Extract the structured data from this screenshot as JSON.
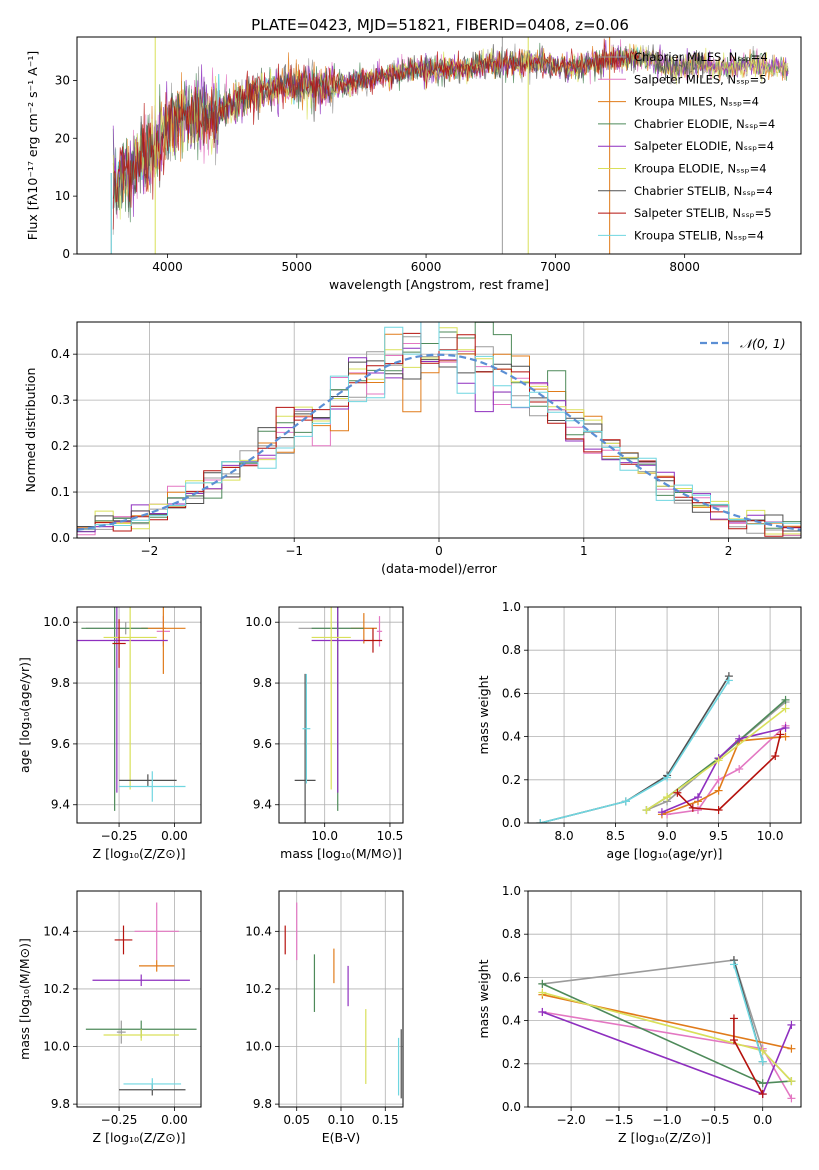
{
  "title": "PLATE=0423, MJD=51821, FIBERID=0408, z=0.06",
  "colors": [
    "#9b9b9b",
    "#e377c2",
    "#e07b1a",
    "#4e8a5a",
    "#8e2fbf",
    "#d9e05a",
    "#505050",
    "#b5120e",
    "#6fd6e0"
  ],
  "chart_data": [
    {
      "type": "line",
      "name": "spectrum",
      "xlabel": "wavelength [Angstrom, rest frame]",
      "ylabel": "Flux [fλ10⁻¹⁷ erg cm⁻² s⁻¹ A⁻¹]",
      "xlim": [
        3300,
        8900
      ],
      "ylim": [
        0,
        37.5
      ],
      "xticks": [
        4000,
        5000,
        6000,
        7000,
        8000
      ],
      "yticks": [
        0,
        10,
        20,
        30
      ],
      "grid": false,
      "legend_position": "right",
      "legend": [
        "Chabrier MILES, Nₛₛₚ=4",
        "Salpeter MILES, Nₛₛₚ=5",
        "Kroupa MILES, Nₛₛₚ=4",
        "Chabrier ELODIE, Nₛₛₚ=4",
        "Salpeter ELODIE, Nₛₛₚ=4",
        "Kroupa ELODIE, Nₛₛₚ=4",
        "Chabrier STELIB, Nₛₛₚ=4",
        "Salpeter STELIB, Nₛₛₚ=5",
        "Kroupa STELIB, Nₛₛₚ=4"
      ],
      "continuum": {
        "x": [
          3580,
          3700,
          3800,
          3900,
          4000,
          4100,
          4200,
          4300,
          4400,
          4500,
          4700,
          4900,
          5100,
          5300,
          5500,
          5700,
          5900,
          6100,
          6300,
          6500,
          6700,
          6900,
          7100,
          7300,
          7500,
          7700,
          7900,
          8100,
          8300,
          8500,
          8700,
          8800
        ],
        "y": [
          13,
          14,
          17,
          18,
          22,
          24,
          24,
          24,
          25,
          26,
          28,
          29,
          29,
          29,
          30,
          31,
          32,
          32,
          32,
          33,
          33,
          33,
          32,
          33,
          34,
          34,
          32,
          33,
          32,
          33,
          32,
          32
        ]
      }
    },
    {
      "type": "bar",
      "name": "residuals",
      "xlabel": "(data-model)/error",
      "ylabel": "Normed distribution",
      "xlim": [
        -2.5,
        2.5
      ],
      "ylim": [
        0,
        0.47
      ],
      "xticks": [
        -2,
        -1,
        0,
        1,
        2
      ],
      "yticks": [
        0.0,
        0.1,
        0.2,
        0.3,
        0.4
      ],
      "grid": true,
      "bins": 40,
      "legend_position": "top-right",
      "legend": [
        "𝒩(0, 1)"
      ]
    },
    {
      "type": "scatter",
      "name": "age-vs-Z",
      "xlabel": "Z [log₁₀(Z/Z⊙)]",
      "ylabel": "age  [log₁₀(age/yr)]",
      "xlim": [
        -0.44,
        0.12
      ],
      "ylim": [
        9.34,
        10.05
      ],
      "xticks": [
        -0.25,
        0.0
      ],
      "yticks": [
        9.4,
        9.6,
        9.8,
        10.0
      ],
      "grid": true,
      "points": [
        {
          "s": 0,
          "x": -0.22,
          "y": 9.98,
          "xe": 0.18,
          "ye": 0.02
        },
        {
          "s": 1,
          "x": -0.05,
          "y": 9.97,
          "xe": 0.03,
          "ye": 0.05
        },
        {
          "s": 2,
          "x": -0.05,
          "y": 9.98,
          "xe": 0.1,
          "ye": 0.15
        },
        {
          "s": 3,
          "x": -0.27,
          "y": 9.98,
          "xe": 0.15,
          "ye": 0.6
        },
        {
          "s": 4,
          "x": -0.26,
          "y": 9.94,
          "xe": 0.23,
          "ye": 0.5
        },
        {
          "s": 5,
          "x": -0.2,
          "y": 9.95,
          "xe": 0.12,
          "ye": 0.5
        },
        {
          "s": 6,
          "x": -0.12,
          "y": 9.48,
          "xe": 0.13,
          "ye": 0.02
        },
        {
          "s": 7,
          "x": -0.25,
          "y": 9.93,
          "xe": 0.03,
          "ye": 0.08
        },
        {
          "s": 8,
          "x": -0.1,
          "y": 9.46,
          "xe": 0.15,
          "ye": 0.05
        }
      ]
    },
    {
      "type": "scatter",
      "name": "age-vs-mass",
      "xlabel": "mass [log₁₀(M/M⊙)]",
      "ylabel": "",
      "xlim": [
        9.65,
        10.6
      ],
      "ylim": [
        9.34,
        10.05
      ],
      "xticks": [
        10.0,
        10.5
      ],
      "yticks": [
        9.4,
        9.6,
        9.8,
        10.0
      ],
      "grid": true,
      "points": [
        {
          "s": 0,
          "x": 10.1,
          "y": 9.98,
          "xe": 0.3,
          "ye": 0.02
        },
        {
          "s": 1,
          "x": 10.42,
          "y": 9.97,
          "xe": 0.02,
          "ye": 0.05
        },
        {
          "s": 2,
          "x": 10.3,
          "y": 9.98,
          "xe": 0.1,
          "ye": 0.05
        },
        {
          "s": 3,
          "x": 10.1,
          "y": 9.98,
          "xe": 0.2,
          "ye": 0.6
        },
        {
          "s": 4,
          "x": 10.1,
          "y": 9.94,
          "xe": 0.2,
          "ye": 0.5
        },
        {
          "s": 5,
          "x": 10.05,
          "y": 9.95,
          "xe": 0.15,
          "ye": 0.5
        },
        {
          "s": 6,
          "x": 9.85,
          "y": 9.48,
          "xe": 0.08,
          "ye": 0.35
        },
        {
          "s": 7,
          "x": 10.37,
          "y": 9.94,
          "xe": 0.07,
          "ye": 0.04
        },
        {
          "s": 8,
          "x": 9.86,
          "y": 9.65,
          "xe": 0.03,
          "ye": 0.18
        }
      ]
    },
    {
      "type": "line",
      "name": "mass-weight-vs-age",
      "xlabel": "age  [log₁₀(age/yr)]",
      "ylabel": "mass weight",
      "xlim": [
        7.65,
        10.3
      ],
      "ylim": [
        0,
        1
      ],
      "xticks": [
        8.0,
        8.5,
        9.0,
        9.5,
        10.0
      ],
      "yticks": [
        0.0,
        0.2,
        0.4,
        0.6,
        0.8,
        1.0
      ],
      "grid": true,
      "series": [
        {
          "s": 0,
          "x": [
            8.8,
            9.0,
            9.5,
            10.15
          ],
          "y": [
            0.06,
            0.1,
            0.3,
            0.56
          ]
        },
        {
          "s": 1,
          "x": [
            9.0,
            9.3,
            9.5,
            9.7,
            10.15
          ],
          "y": [
            0.04,
            0.06,
            0.2,
            0.25,
            0.45
          ]
        },
        {
          "s": 2,
          "x": [
            8.95,
            9.3,
            9.5,
            9.7,
            10.15
          ],
          "y": [
            0.04,
            0.1,
            0.15,
            0.38,
            0.4
          ]
        },
        {
          "s": 3,
          "x": [
            8.8,
            9.0,
            9.5,
            10.15
          ],
          "y": [
            0.06,
            0.12,
            0.3,
            0.57
          ]
        },
        {
          "s": 4,
          "x": [
            8.95,
            9.3,
            9.5,
            9.7,
            10.15
          ],
          "y": [
            0.05,
            0.12,
            0.3,
            0.39,
            0.44
          ]
        },
        {
          "s": 5,
          "x": [
            8.8,
            9.0,
            9.5,
            10.15
          ],
          "y": [
            0.06,
            0.12,
            0.29,
            0.53
          ]
        },
        {
          "s": 6,
          "x": [
            7.77,
            8.6,
            9.0,
            9.6
          ],
          "y": [
            0.0,
            0.1,
            0.22,
            0.68
          ]
        },
        {
          "s": 7,
          "x": [
            9.1,
            9.25,
            9.5,
            10.05,
            10.1
          ],
          "y": [
            0.14,
            0.07,
            0.06,
            0.31,
            0.41
          ]
        },
        {
          "s": 8,
          "x": [
            7.77,
            8.6,
            9.0,
            9.6
          ],
          "y": [
            0.0,
            0.1,
            0.21,
            0.66
          ]
        }
      ]
    },
    {
      "type": "scatter",
      "name": "mass-vs-Z",
      "xlabel": "Z [log₁₀(Z/Z⊙)]",
      "ylabel": "mass [log₁₀(M/M⊙)]",
      "xlim": [
        -0.44,
        0.12
      ],
      "ylim": [
        9.79,
        10.54
      ],
      "xticks": [
        -0.25,
        0.0
      ],
      "yticks": [
        9.8,
        10.0,
        10.2,
        10.4
      ],
      "grid": true,
      "points": [
        {
          "s": 0,
          "x": -0.24,
          "y": 10.05,
          "xe": 0.02,
          "ye": 0.04
        },
        {
          "s": 1,
          "x": -0.08,
          "y": 10.4,
          "xe": 0.1,
          "ye": 0.1
        },
        {
          "s": 2,
          "x": -0.08,
          "y": 10.28,
          "xe": 0.08,
          "ye": 0.02
        },
        {
          "s": 3,
          "x": -0.15,
          "y": 10.06,
          "xe": 0.25,
          "ye": 0.03
        },
        {
          "s": 4,
          "x": -0.15,
          "y": 10.23,
          "xe": 0.22,
          "ye": 0.02
        },
        {
          "s": 5,
          "x": -0.15,
          "y": 10.04,
          "xe": 0.17,
          "ye": 0.02
        },
        {
          "s": 6,
          "x": -0.1,
          "y": 9.85,
          "xe": 0.15,
          "ye": 0.02
        },
        {
          "s": 7,
          "x": -0.23,
          "y": 10.37,
          "xe": 0.04,
          "ye": 0.05
        },
        {
          "s": 8,
          "x": -0.1,
          "y": 9.87,
          "xe": 0.13,
          "ye": 0.02
        }
      ]
    },
    {
      "type": "scatter",
      "name": "mass-vs-EBV",
      "xlabel": "E(B-V)",
      "ylabel": "",
      "xlim": [
        0.03,
        0.17
      ],
      "ylim": [
        9.79,
        10.54
      ],
      "xticks": [
        0.05,
        0.1,
        0.15
      ],
      "yticks": [
        9.8,
        10.0,
        10.2,
        10.4
      ],
      "grid": true,
      "points": [
        {
          "s": 1,
          "x": 0.05,
          "y": 10.4,
          "xe": 0,
          "ye": 0.1
        },
        {
          "s": 2,
          "x": 0.092,
          "y": 10.28,
          "xe": 0,
          "ye": 0.06
        },
        {
          "s": 3,
          "x": 0.07,
          "y": 10.22,
          "xe": 0,
          "ye": 0.1
        },
        {
          "s": 4,
          "x": 0.108,
          "y": 10.21,
          "xe": 0,
          "ye": 0.07
        },
        {
          "s": 5,
          "x": 0.128,
          "y": 10.0,
          "xe": 0,
          "ye": 0.13
        },
        {
          "s": 6,
          "x": 0.168,
          "y": 9.94,
          "xe": 0,
          "ye": 0.12
        },
        {
          "s": 7,
          "x": 0.037,
          "y": 10.37,
          "xe": 0,
          "ye": 0.05
        },
        {
          "s": 8,
          "x": 0.165,
          "y": 9.93,
          "xe": 0,
          "ye": 0.1
        }
      ]
    },
    {
      "type": "line",
      "name": "mass-weight-vs-Z",
      "xlabel": "Z [log₁₀(Z/Z⊙)]",
      "ylabel": "mass weight",
      "xlim": [
        -2.45,
        0.4
      ],
      "ylim": [
        0,
        1
      ],
      "xticks": [
        -2.0,
        -1.5,
        -1.0,
        -0.5,
        0.0
      ],
      "yticks": [
        0.0,
        0.2,
        0.4,
        0.6,
        0.8,
        1.0
      ],
      "grid": true,
      "series": [
        {
          "s": 0,
          "x": [
            -2.3,
            -0.3,
            0.0,
            0.3
          ],
          "y": [
            0.57,
            0.68,
            0.26,
            0.12
          ]
        },
        {
          "s": 1,
          "x": [
            -2.3,
            0.0,
            0.3
          ],
          "y": [
            0.44,
            0.27,
            0.04
          ]
        },
        {
          "s": 2,
          "x": [
            -2.3,
            0.3
          ],
          "y": [
            0.52,
            0.27
          ]
        },
        {
          "s": 3,
          "x": [
            -2.3,
            0.0,
            0.3
          ],
          "y": [
            0.57,
            0.11,
            0.12
          ]
        },
        {
          "s": 4,
          "x": [
            -2.3,
            0.0,
            0.3
          ],
          "y": [
            0.44,
            0.06,
            0.38
          ]
        },
        {
          "s": 5,
          "x": [
            -2.3,
            0.0,
            0.3
          ],
          "y": [
            0.53,
            0.26,
            0.12
          ]
        },
        {
          "s": 6,
          "x": [
            -0.3,
            0.0
          ],
          "y": [
            0.68,
            0.21
          ]
        },
        {
          "s": 7,
          "x": [
            -0.3,
            -0.3,
            0.0
          ],
          "y": [
            0.41,
            0.31,
            0.06
          ]
        },
        {
          "s": 8,
          "x": [
            -0.3,
            0.0
          ],
          "y": [
            0.66,
            0.21
          ]
        }
      ]
    }
  ]
}
